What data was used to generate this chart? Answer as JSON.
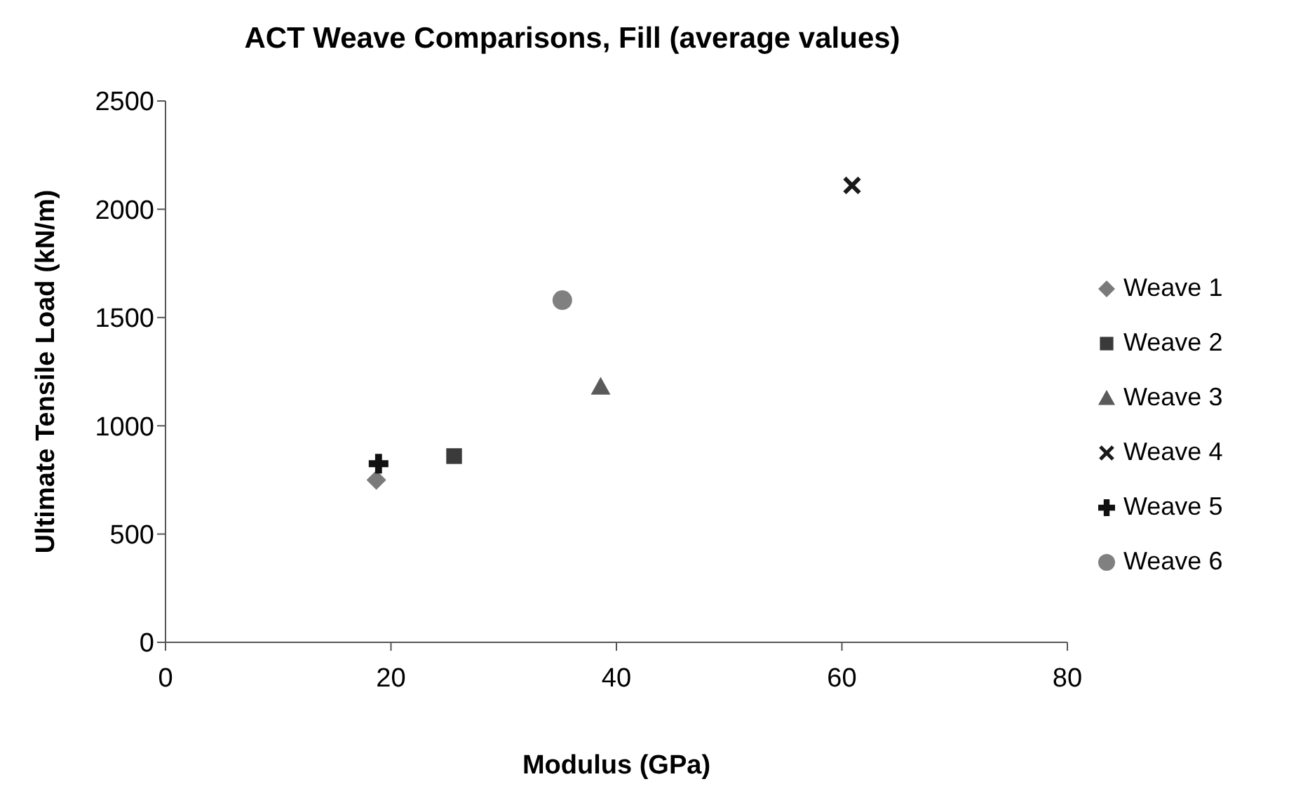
{
  "chart_data": {
    "type": "scatter",
    "title": "ACT Weave Comparisons, Fill (average values)",
    "xlabel": "Modulus (GPa)",
    "ylabel": "Ultimate Tensile Load (kN/m)",
    "xlim": [
      0,
      80
    ],
    "xticks": [
      0,
      20,
      40,
      60,
      80
    ],
    "ylim": [
      0,
      2500
    ],
    "yticks": [
      0,
      500,
      1000,
      1500,
      2000,
      2500
    ],
    "grid": false,
    "legend": "right",
    "series": [
      {
        "name": "Weave 1",
        "color": "#7a7a7a",
        "marker": "diamond",
        "x": [
          18.7
        ],
        "values": [
          750
        ]
      },
      {
        "name": "Weave 2",
        "color": "#3a3a3a",
        "marker": "square",
        "x": [
          25.6
        ],
        "values": [
          860
        ]
      },
      {
        "name": "Weave 3",
        "color": "#5a5a5a",
        "marker": "triangle",
        "x": [
          38.6
        ],
        "values": [
          1180
        ]
      },
      {
        "name": "Weave 4",
        "color": "#1a1a1a",
        "marker": "cross",
        "x": [
          60.9
        ],
        "values": [
          2110
        ]
      },
      {
        "name": "Weave 5",
        "color": "#111111",
        "marker": "plus",
        "x": [
          18.9
        ],
        "values": [
          825
        ]
      },
      {
        "name": "Weave 6",
        "color": "#808080",
        "marker": "circle",
        "x": [
          35.2
        ],
        "values": [
          1580
        ]
      }
    ]
  }
}
